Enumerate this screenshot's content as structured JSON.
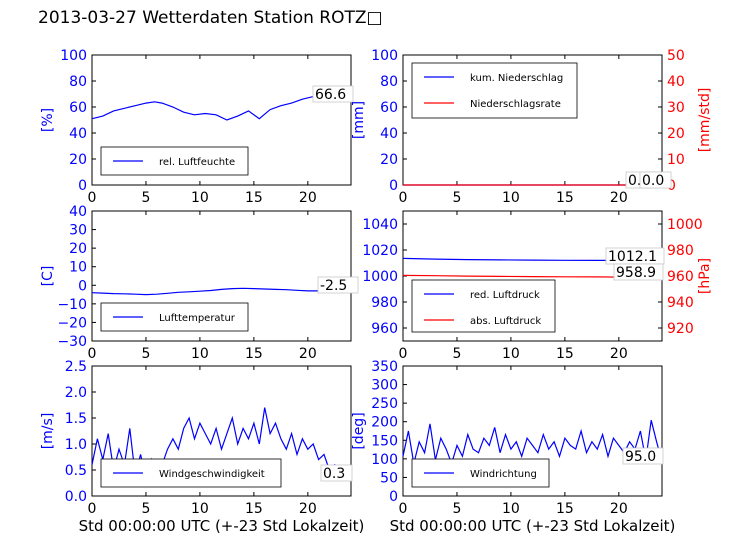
{
  "title": "2013-03-27 Wetterdaten Station ROTZ□",
  "colors": {
    "blue": "#0000ff",
    "red": "#ff0000",
    "black": "#000000",
    "light_blue": "#8080ff"
  },
  "chart_data": [
    {
      "id": "humidity",
      "type": "line",
      "ylabel": "[%]",
      "xlim": [
        0,
        24
      ],
      "xticks": [
        "0",
        "5",
        "10",
        "15",
        "20"
      ],
      "ylim": [
        0,
        100
      ],
      "yticks": [
        "0",
        "20",
        "40",
        "60",
        "80",
        "100"
      ],
      "series": [
        {
          "name": "rel. Luftfeuchte",
          "color": "#0000ff",
          "x": [
            0,
            1,
            2,
            3,
            4,
            5,
            5.8,
            6.5,
            7.5,
            8.5,
            9.5,
            10.5,
            11.5,
            12.5,
            13.5,
            14.5,
            15.5,
            16.5,
            17.5,
            18.5,
            19.5,
            20.5,
            21.5,
            22.5,
            24
          ],
          "y": [
            51,
            53,
            57,
            59,
            61,
            63,
            64,
            63,
            60,
            56,
            54,
            55,
            54,
            50,
            53,
            57,
            51,
            58,
            61,
            63,
            66,
            68,
            67,
            66,
            66.6
          ]
        }
      ],
      "value_label": "66.6",
      "legend": "lower-left"
    },
    {
      "id": "precipitation",
      "type": "line",
      "ylabel": "[mm]",
      "ylabel_right": "[mm/std]",
      "xlim": [
        0,
        24
      ],
      "xticks": [
        "0",
        "5",
        "10",
        "15",
        "20"
      ],
      "ylim": [
        0,
        100
      ],
      "yticks": [
        "0",
        "20",
        "40",
        "60",
        "80",
        "100"
      ],
      "ylim_right": [
        0,
        50
      ],
      "yticks_right": [
        "0",
        "10",
        "20",
        "30",
        "40",
        "50"
      ],
      "series": [
        {
          "name": "kum. Niederschlag",
          "color": "#0000ff",
          "axis": "left",
          "x": [
            0,
            24
          ],
          "y": [
            0,
            0
          ]
        },
        {
          "name": "Niederschlagsrate",
          "color": "#ff0000",
          "axis": "right",
          "x": [
            0,
            24
          ],
          "y": [
            0,
            0
          ]
        }
      ],
      "value_label": "0.0",
      "value_label_2": "0.0",
      "legend": "upper-left"
    },
    {
      "id": "temperature",
      "type": "line",
      "ylabel": "[C]",
      "xlim": [
        0,
        24
      ],
      "xticks": [
        "0",
        "5",
        "10",
        "15",
        "20"
      ],
      "ylim": [
        -30,
        40
      ],
      "yticks": [
        "−30",
        "−20",
        "−10",
        "0",
        "10",
        "20",
        "30",
        "40"
      ],
      "series": [
        {
          "name": "Lufttemperatur",
          "color": "#0000ff",
          "x": [
            0,
            1,
            2,
            3,
            4,
            5,
            6,
            7,
            8,
            9,
            10,
            11,
            12,
            13,
            14,
            15,
            16,
            17,
            18,
            19,
            20,
            21,
            22,
            23,
            24
          ],
          "y": [
            -4,
            -4.2,
            -4.5,
            -4.6,
            -4.8,
            -5,
            -4.8,
            -4.3,
            -3.8,
            -3.5,
            -3.2,
            -2.8,
            -2.2,
            -1.8,
            -1.6,
            -1.8,
            -2,
            -2.2,
            -2.4,
            -2.7,
            -3,
            -3,
            -2.8,
            -2.6,
            -2.5
          ]
        }
      ],
      "value_label": "-2.5",
      "legend": "lower-left"
    },
    {
      "id": "pressure",
      "type": "line",
      "ylabel_right": "[hPa]",
      "xlim": [
        0,
        24
      ],
      "xticks": [
        "0",
        "5",
        "10",
        "15",
        "20"
      ],
      "ylim": [
        950,
        1050
      ],
      "yticks": [
        "960",
        "980",
        "1000",
        "1020",
        "1040"
      ],
      "ylim_right": [
        910,
        1010
      ],
      "yticks_right": [
        "920",
        "940",
        "960",
        "980",
        "1000"
      ],
      "series": [
        {
          "name": "red. Luftdruck",
          "color": "#0000ff",
          "axis": "left",
          "x": [
            0,
            3,
            6,
            9,
            12,
            15,
            18,
            21,
            24
          ],
          "y": [
            1013.5,
            1013,
            1012.6,
            1012.4,
            1012.2,
            1012.1,
            1012,
            1012.1,
            1012.1
          ]
        },
        {
          "name": "abs. Luftdruck",
          "color": "#ff0000",
          "axis": "right",
          "x": [
            0,
            3,
            6,
            9,
            12,
            15,
            18,
            21,
            24
          ],
          "y": [
            960.5,
            960.2,
            959.9,
            959.7,
            959.5,
            959.4,
            959.3,
            959.1,
            958.9
          ]
        }
      ],
      "value_label": "1012.1",
      "value_label_2": "958.9",
      "legend": "lower-left"
    },
    {
      "id": "wind_speed",
      "type": "line",
      "ylabel": "[m/s]",
      "xlabel": "Std 00:00:00 UTC (+-23 Std Lokalzeit)",
      "xlim": [
        0,
        24
      ],
      "xticks": [
        "0",
        "5",
        "10",
        "15",
        "20"
      ],
      "ylim": [
        0,
        2.5
      ],
      "yticks": [
        "0.0",
        "0.5",
        "1.0",
        "1.5",
        "2.0",
        "2.5"
      ],
      "series": [
        {
          "name": "Windgeschwindigkeit",
          "color": "#0000ff",
          "x": [
            0,
            0.5,
            1,
            1.5,
            2,
            2.5,
            3,
            3.5,
            4,
            4.5,
            5,
            5.5,
            6,
            6.5,
            7,
            7.5,
            8,
            8.5,
            9,
            9.5,
            10,
            10.5,
            11,
            11.5,
            12,
            12.5,
            13,
            13.5,
            14,
            14.5,
            15,
            15.5,
            16,
            16.5,
            17,
            17.5,
            18,
            18.5,
            19,
            19.5,
            20,
            20.5,
            21,
            21.5,
            22,
            22.5,
            23,
            23.5,
            24
          ],
          "y": [
            0.6,
            1.1,
            0.7,
            1.2,
            0.5,
            0.9,
            0.6,
            1.3,
            0.4,
            0.8,
            0.3,
            0.7,
            0.4,
            0.6,
            0.9,
            1.1,
            0.9,
            1.3,
            1.5,
            1.1,
            1.4,
            1.2,
            1.0,
            1.3,
            0.9,
            1.2,
            1.5,
            1.0,
            1.3,
            1.1,
            1.4,
            1.0,
            1.7,
            1.2,
            1.4,
            1.1,
            0.9,
            1.2,
            0.8,
            1.1,
            0.9,
            1.0,
            0.7,
            0.8,
            0.5,
            0.6,
            0.4,
            0.3,
            0.3
          ]
        }
      ],
      "value_label": "0.3",
      "legend": "lower-center"
    },
    {
      "id": "wind_direction",
      "type": "line",
      "ylabel": "[deg]",
      "xlabel": "Std 00:00:00 UTC (+-23 Std Lokalzeit)",
      "xlim": [
        0,
        24
      ],
      "xticks": [
        "0",
        "5",
        "10",
        "15",
        "20"
      ],
      "ylim": [
        0,
        360
      ],
      "yticks": [
        "0",
        "50",
        "100",
        "150",
        "200",
        "250",
        "300",
        "350"
      ],
      "series": [
        {
          "name": "Windrichtung",
          "color": "#0000ff",
          "x": [
            0,
            0.5,
            1,
            1.5,
            2,
            2.5,
            3,
            3.5,
            4,
            4.5,
            5,
            5.5,
            6,
            6.5,
            7,
            7.5,
            8,
            8.5,
            9,
            9.5,
            10,
            10.5,
            11,
            11.5,
            12,
            12.5,
            13,
            13.5,
            14,
            14.5,
            15,
            15.5,
            16,
            16.5,
            17,
            17.5,
            18,
            18.5,
            19,
            19.5,
            20,
            20.5,
            21,
            21.5,
            22,
            22.5,
            23,
            23.5,
            24
          ],
          "y": [
            110,
            180,
            90,
            150,
            120,
            200,
            100,
            160,
            130,
            90,
            140,
            110,
            170,
            130,
            120,
            160,
            140,
            190,
            120,
            170,
            130,
            150,
            110,
            160,
            140,
            120,
            170,
            130,
            150,
            110,
            160,
            140,
            130,
            180,
            120,
            150,
            130,
            170,
            110,
            160,
            140,
            120,
            150,
            130,
            180,
            100,
            210,
            150,
            95
          ]
        }
      ],
      "value_label": "95.0",
      "legend": "lower-center"
    }
  ]
}
